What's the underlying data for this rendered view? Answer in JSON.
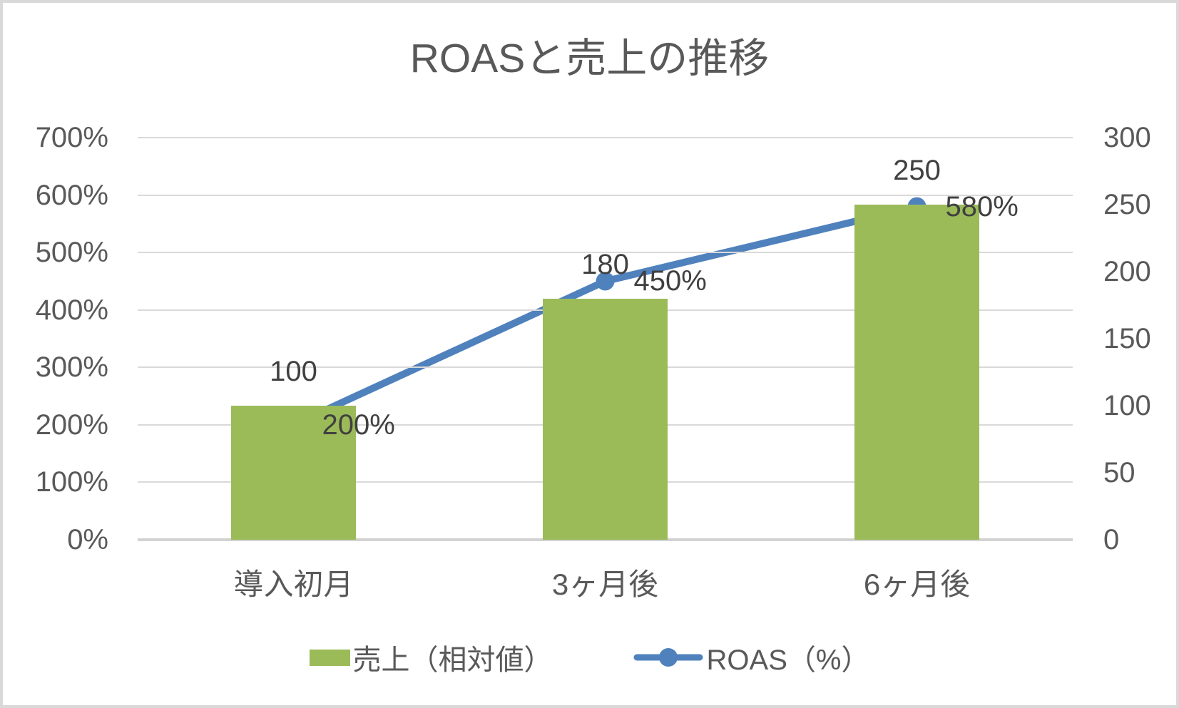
{
  "title": "ROASと売上の推移",
  "colors": {
    "bar": "#9BBB59",
    "line": "#4F81BD",
    "grid": "#D9D9D9",
    "axis_text": "#595959",
    "data_label_text": "#404040"
  },
  "chart_data": {
    "type": "combo",
    "title": "ROASと売上の推移",
    "categories": [
      "導入初月",
      "3ヶ月後",
      "6ヶ月後"
    ],
    "series": [
      {
        "name": "売上（相対値）",
        "type": "bar",
        "axis": "right",
        "values": [
          100,
          180,
          250
        ],
        "data_labels": [
          "100",
          "180",
          "250"
        ]
      },
      {
        "name": "ROAS（%）",
        "type": "line",
        "axis": "left",
        "values": [
          200,
          450,
          580
        ],
        "data_labels": [
          "200%",
          "450%",
          "580%"
        ]
      }
    ],
    "left_axis": {
      "min": 0,
      "max": 700,
      "step": 100,
      "ticks": [
        "700%",
        "600%",
        "500%",
        "400%",
        "300%",
        "200%",
        "100%",
        "0%"
      ]
    },
    "right_axis": {
      "min": 0,
      "max": 300,
      "step": 50,
      "ticks": [
        "300",
        "250",
        "200",
        "150",
        "100",
        "50",
        "0"
      ]
    },
    "grid": "horizontal",
    "legend_position": "bottom"
  }
}
